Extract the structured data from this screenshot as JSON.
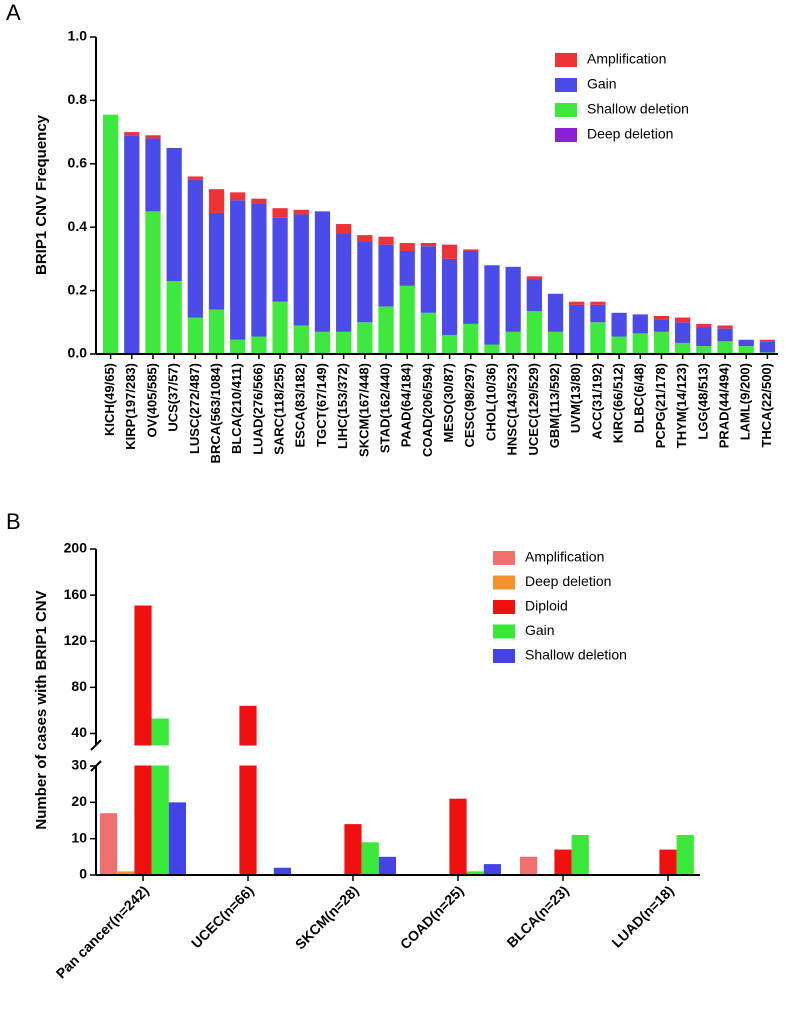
{
  "chart_data": [
    {
      "type": "bar",
      "stacked": true,
      "panel": "A",
      "ylabel": "BRIP1 CNV Frequency",
      "categories": [
        "KICH(49/65)",
        "KIRP(197/283)",
        "OV(405/585)",
        "UCS(37/57)",
        "LUSC(272/487)",
        "BRCA(563/1084)",
        "BLCA(210/411)",
        "LUAD(276/566)",
        "SARC(118/255)",
        "ESCA(83/182)",
        "TGCT(67/149)",
        "LIHC(153/372)",
        "SKCM(167/448)",
        "STAD(162/440)",
        "PAAD(64/184)",
        "COAD(206/594)",
        "MESO(30/87)",
        "CESC(98/297)",
        "CHOL(10/36)",
        "HNSC(143/523)",
        "UCEC(129/529)",
        "GBM(113/592)",
        "UVM(13/80)",
        "ACC(31/192)",
        "KIRC(66/512)",
        "DLBC(6/48)",
        "PCPG(21/178)",
        "THYM(14/123)",
        "LGG(48/513)",
        "PRAD(44/494)",
        "LAML(9/200)",
        "THCA(22/500)"
      ],
      "series": [
        {
          "name": "Amplification",
          "color": "#ee3338",
          "values": [
            0,
            0.01,
            0.01,
            0,
            0.01,
            0.075,
            0.025,
            0.015,
            0.03,
            0.015,
            0,
            0.03,
            0.02,
            0.025,
            0.025,
            0.01,
            0.045,
            0.005,
            0,
            0,
            0.01,
            0,
            0.01,
            0.01,
            0,
            0,
            0.01,
            0.015,
            0.01,
            0.01,
            0,
            0.005
          ]
        },
        {
          "name": "Gain",
          "color": "#4b4bea",
          "values": [
            0,
            0.69,
            0.23,
            0.42,
            0.435,
            0.305,
            0.44,
            0.42,
            0.265,
            0.35,
            0.38,
            0.31,
            0.255,
            0.195,
            0.11,
            0.21,
            0.24,
            0.23,
            0.25,
            0.205,
            0.1,
            0.12,
            0.155,
            0.055,
            0.075,
            0.06,
            0.04,
            0.065,
            0.06,
            0.04,
            0.02,
            0.035
          ]
        },
        {
          "name": "Shallow deletion",
          "color": "#3fe83f",
          "values": [
            0.755,
            0,
            0.45,
            0.23,
            0.115,
            0.14,
            0.045,
            0.055,
            0.165,
            0.09,
            0.07,
            0.07,
            0.1,
            0.15,
            0.215,
            0.13,
            0.06,
            0.095,
            0.03,
            0.07,
            0.135,
            0.07,
            0,
            0.1,
            0.055,
            0.065,
            0.07,
            0.035,
            0.025,
            0.04,
            0.025,
            0.005
          ]
        },
        {
          "name": "Deep deletion",
          "color": "#8a1fd6",
          "values": [
            0,
            0,
            0,
            0,
            0,
            0,
            0,
            0,
            0,
            0,
            0,
            0,
            0,
            0,
            0,
            0,
            0,
            0,
            0,
            0,
            0,
            0,
            0,
            0,
            0,
            0,
            0,
            0,
            0,
            0,
            0,
            0
          ]
        }
      ],
      "ylim": [
        0,
        1
      ],
      "yticks": [
        {
          "value": 0,
          "label": "0.0"
        },
        0.2,
        0.4,
        0.6,
        0.8,
        {
          "value": 1,
          "label": "1.0"
        }
      ]
    },
    {
      "type": "bar",
      "stacked": false,
      "panel": "B",
      "ylabel": "Number of  cases with BRIP1 CNV",
      "categories": [
        "Pan cancer(n=242)",
        "UCEC(n=66)",
        "SKCM(n=28)",
        "COAD(n=25)",
        "BLCA(n=23)",
        "LUAD(n=18)"
      ],
      "series": [
        {
          "name": "Amplification",
          "color": "#f07070",
          "values": [
            17,
            0,
            0,
            0,
            5,
            0
          ]
        },
        {
          "name": "Deep deletion",
          "color": "#f5922f",
          "values": [
            1,
            0,
            0,
            0,
            0,
            0
          ]
        },
        {
          "name": "Diploid",
          "color": "#f01010",
          "values": [
            151,
            64,
            14,
            21,
            7,
            7
          ]
        },
        {
          "name": "Gain",
          "color": "#3ae83a",
          "values": [
            53,
            0,
            9,
            1,
            11,
            11
          ]
        },
        {
          "name": "Shallow deletion",
          "color": "#4444e6",
          "values": [
            20,
            2,
            5,
            3,
            0,
            0
          ]
        }
      ],
      "ylim": [
        0,
        200
      ],
      "ysegments": [
        [
          0,
          30
        ],
        [
          30,
          200
        ]
      ],
      "yticks": [
        0,
        10,
        20,
        30,
        40,
        80,
        120,
        160,
        200
      ]
    }
  ]
}
